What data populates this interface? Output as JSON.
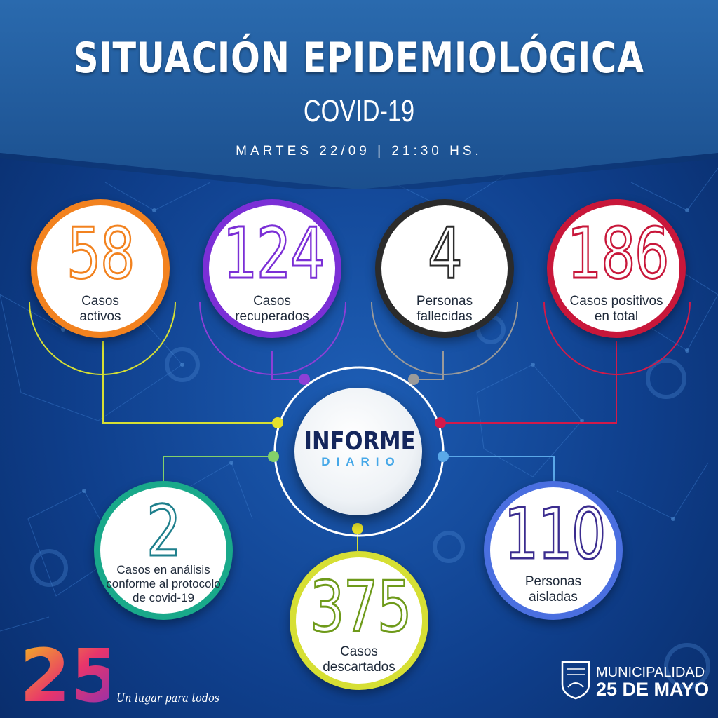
{
  "header": {
    "title": "SITUACIÓN EPIDEMIOLÓGICA",
    "subtitle": "COVID-19",
    "date": "MARTES 22/09 | 21:30 HS."
  },
  "stats": {
    "activos": {
      "value": "58",
      "label_1": "Casos",
      "label_2": "activos",
      "color": "#f2821f"
    },
    "recuperados": {
      "value": "124",
      "label_1": "Casos",
      "label_2": "recuperados",
      "color": "#7b2fd6"
    },
    "fallecidas": {
      "value": "4",
      "label_1": "Personas",
      "label_2": "fallecidas",
      "color": "#2b2b2b"
    },
    "positivos": {
      "value": "186",
      "label_1": "Casos positivos",
      "label_2": "en total",
      "color": "#c8173a"
    },
    "analisis": {
      "value": "2",
      "label_1": "Casos en análisis",
      "label_2": "conforme al protocolo",
      "label_3": "de covid-19",
      "color": "#19a98a"
    },
    "descartados": {
      "value": "375",
      "label_1": "Casos",
      "label_2": "descartados",
      "color": "#7aa01c"
    },
    "aisladas": {
      "value": "110",
      "label_1": "Personas",
      "label_2": "aisladas",
      "color": "#3b2c8f"
    }
  },
  "center": {
    "title": "INFORME",
    "subtitle": "DIARIO"
  },
  "footer": {
    "brand": "25",
    "slogan": "Un lugar para todos",
    "municipality_line1": "MUNICIPALIDAD",
    "municipality_line2": "25 DE MAYO"
  },
  "colors": {
    "background": "#0f3f8c",
    "header": "#1e5a9e",
    "accent_blue": "#46a8e8"
  }
}
